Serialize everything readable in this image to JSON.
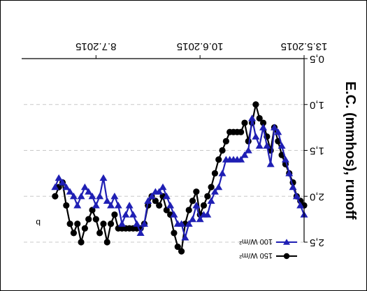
{
  "chart_data": {
    "type": "line",
    "panel_label": "b",
    "ylabel": "E.C. (mmhos), runoff",
    "ylim": [
      0.5,
      2.5
    ],
    "yticks": [
      0.5,
      1.0,
      1.5,
      2.0,
      2.5
    ],
    "ytick_labels": [
      "0,5",
      "1,0",
      "1,5",
      "2,0",
      "2,5"
    ],
    "x_axis": {
      "start": "13.5.2015",
      "end": "28.7.2015"
    },
    "xticks": [
      "13.5.2015",
      "10.6.2015",
      "8.7.2015"
    ],
    "grid": "horizontal dashed",
    "legend_position": "bottom-right",
    "series": [
      {
        "name": "150 W/m²",
        "color": "#000000",
        "marker": "circle",
        "points": [
          [
            "13.5.2015",
            2.1
          ],
          [
            "14.5.2015",
            2.05
          ],
          [
            "15.5.2015",
            2.0
          ],
          [
            "16.5.2015",
            1.85
          ],
          [
            "17.5.2015",
            1.75
          ],
          [
            "18.5.2015",
            1.65
          ],
          [
            "19.5.2015",
            1.55
          ],
          [
            "20.5.2015",
            1.4
          ],
          [
            "21.5.2015",
            1.25
          ],
          [
            "22.5.2015",
            1.5
          ],
          [
            "23.5.2015",
            1.35
          ],
          [
            "24.5.2015",
            1.2
          ],
          [
            "25.5.2015",
            1.15
          ],
          [
            "26.5.2015",
            1.0
          ],
          [
            "27.5.2015",
            1.2
          ],
          [
            "28.5.2015",
            1.4
          ],
          [
            "29.5.2015",
            1.2
          ],
          [
            "30.5.2015",
            1.3
          ],
          [
            "31.5.2015",
            1.3
          ],
          [
            "1.6.2015",
            1.3
          ],
          [
            "2.6.2015",
            1.3
          ],
          [
            "3.6.2015",
            1.4
          ],
          [
            "4.6.2015",
            1.5
          ],
          [
            "5.6.2015",
            1.6
          ],
          [
            "6.6.2015",
            1.75
          ],
          [
            "7.6.2015",
            1.9
          ],
          [
            "8.6.2015",
            2.0
          ],
          [
            "9.6.2015",
            2.1
          ],
          [
            "10.6.2015",
            2.2
          ],
          [
            "11.6.2015",
            1.95
          ],
          [
            "12.6.2015",
            2.05
          ],
          [
            "13.6.2015",
            2.15
          ],
          [
            "14.6.2015",
            2.3
          ],
          [
            "15.6.2015",
            2.6
          ],
          [
            "16.6.2015",
            2.55
          ],
          [
            "17.6.2015",
            2.4
          ],
          [
            "18.6.2015",
            2.2
          ],
          [
            "19.6.2015",
            2.15
          ],
          [
            "20.6.2015",
            2.0
          ],
          [
            "21.6.2015",
            2.1
          ],
          [
            "22.6.2015",
            2.05
          ],
          [
            "23.6.2015",
            2.0
          ],
          [
            "24.6.2015",
            2.1
          ],
          [
            "25.6.2015",
            2.3
          ],
          [
            "26.6.2015",
            2.35
          ],
          [
            "27.6.2015",
            2.35
          ],
          [
            "28.6.2015",
            2.35
          ],
          [
            "29.6.2015",
            2.35
          ],
          [
            "30.6.2015",
            2.35
          ],
          [
            "1.7.2015",
            2.35
          ],
          [
            "2.7.2015",
            2.35
          ],
          [
            "3.7.2015",
            2.2
          ],
          [
            "4.7.2015",
            2.3
          ],
          [
            "5.7.2015",
            2.5
          ],
          [
            "6.7.2015",
            2.3
          ],
          [
            "7.7.2015",
            2.4
          ],
          [
            "8.7.2015",
            2.25
          ],
          [
            "9.7.2015",
            2.15
          ],
          [
            "10.7.2015",
            2.25
          ],
          [
            "11.7.2015",
            2.35
          ],
          [
            "12.7.2015",
            2.5
          ],
          [
            "13.7.2015",
            2.3
          ],
          [
            "14.7.2015",
            2.4
          ],
          [
            "15.7.2015",
            2.3
          ],
          [
            "16.7.2015",
            2.1
          ],
          [
            "17.7.2015",
            1.85
          ],
          [
            "18.7.2015",
            1.9
          ],
          [
            "19.7.2015",
            2.0
          ]
        ]
      },
      {
        "name": "100 W/m²",
        "color": "#1f1fb4",
        "marker": "triangle-down",
        "points": [
          [
            "13.5.2015",
            2.2
          ],
          [
            "14.5.2015",
            2.1
          ],
          [
            "15.5.2015",
            2.0
          ],
          [
            "16.5.2015",
            1.9
          ],
          [
            "17.5.2015",
            1.75
          ],
          [
            "18.5.2015",
            1.6
          ],
          [
            "19.5.2015",
            1.45
          ],
          [
            "20.5.2015",
            1.3
          ],
          [
            "21.5.2015",
            1.25
          ],
          [
            "22.5.2015",
            1.65
          ],
          [
            "23.5.2015",
            1.45
          ],
          [
            "24.5.2015",
            1.25
          ],
          [
            "25.5.2015",
            1.45
          ],
          [
            "26.5.2015",
            1.35
          ],
          [
            "27.5.2015",
            1.15
          ],
          [
            "28.5.2015",
            1.5
          ],
          [
            "29.5.2015",
            1.55
          ],
          [
            "30.5.2015",
            1.6
          ],
          [
            "31.5.2015",
            1.6
          ],
          [
            "1.6.2015",
            1.6
          ],
          [
            "2.6.2015",
            1.6
          ],
          [
            "3.6.2015",
            1.6
          ],
          [
            "4.6.2015",
            1.75
          ],
          [
            "5.6.2015",
            1.9
          ],
          [
            "6.6.2015",
            1.95
          ],
          [
            "7.6.2015",
            2.05
          ],
          [
            "8.6.2015",
            2.2
          ],
          [
            "9.6.2015",
            2.2
          ],
          [
            "10.6.2015",
            2.25
          ],
          [
            "11.6.2015",
            2.1
          ],
          [
            "12.6.2015",
            2.25
          ],
          [
            "13.6.2015",
            2.3
          ],
          [
            "14.6.2015",
            2.45
          ],
          [
            "15.6.2015",
            2.3
          ],
          [
            "16.6.2015",
            2.3
          ],
          [
            "17.6.2015",
            2.2
          ],
          [
            "18.6.2015",
            2.1
          ],
          [
            "19.6.2015",
            2.0
          ],
          [
            "20.6.2015",
            1.9
          ],
          [
            "21.6.2015",
            1.95
          ],
          [
            "22.6.2015",
            1.95
          ],
          [
            "23.6.2015",
            2.0
          ],
          [
            "24.6.2015",
            2.05
          ],
          [
            "25.6.2015",
            2.3
          ],
          [
            "26.6.2015",
            2.4
          ],
          [
            "27.6.2015",
            2.3
          ],
          [
            "28.6.2015",
            2.2
          ],
          [
            "29.6.2015",
            2.1
          ],
          [
            "30.6.2015",
            2.2
          ],
          [
            "1.7.2015",
            2.3
          ],
          [
            "2.7.2015",
            2.1
          ],
          [
            "3.7.2015",
            2.0
          ],
          [
            "4.7.2015",
            2.1
          ],
          [
            "5.7.2015",
            2.05
          ],
          [
            "6.7.2015",
            1.8
          ],
          [
            "7.7.2015",
            2.0
          ],
          [
            "8.7.2015",
            2.1
          ],
          [
            "9.7.2015",
            2.0
          ],
          [
            "10.7.2015",
            1.95
          ],
          [
            "11.7.2015",
            1.9
          ],
          [
            "12.7.2015",
            2.0
          ],
          [
            "13.7.2015",
            2.1
          ],
          [
            "14.7.2015",
            2.0
          ],
          [
            "15.7.2015",
            1.95
          ],
          [
            "16.7.2015",
            1.9
          ],
          [
            "17.7.2015",
            1.85
          ],
          [
            "18.7.2015",
            1.8
          ],
          [
            "19.7.2015",
            1.9
          ]
        ]
      }
    ]
  }
}
